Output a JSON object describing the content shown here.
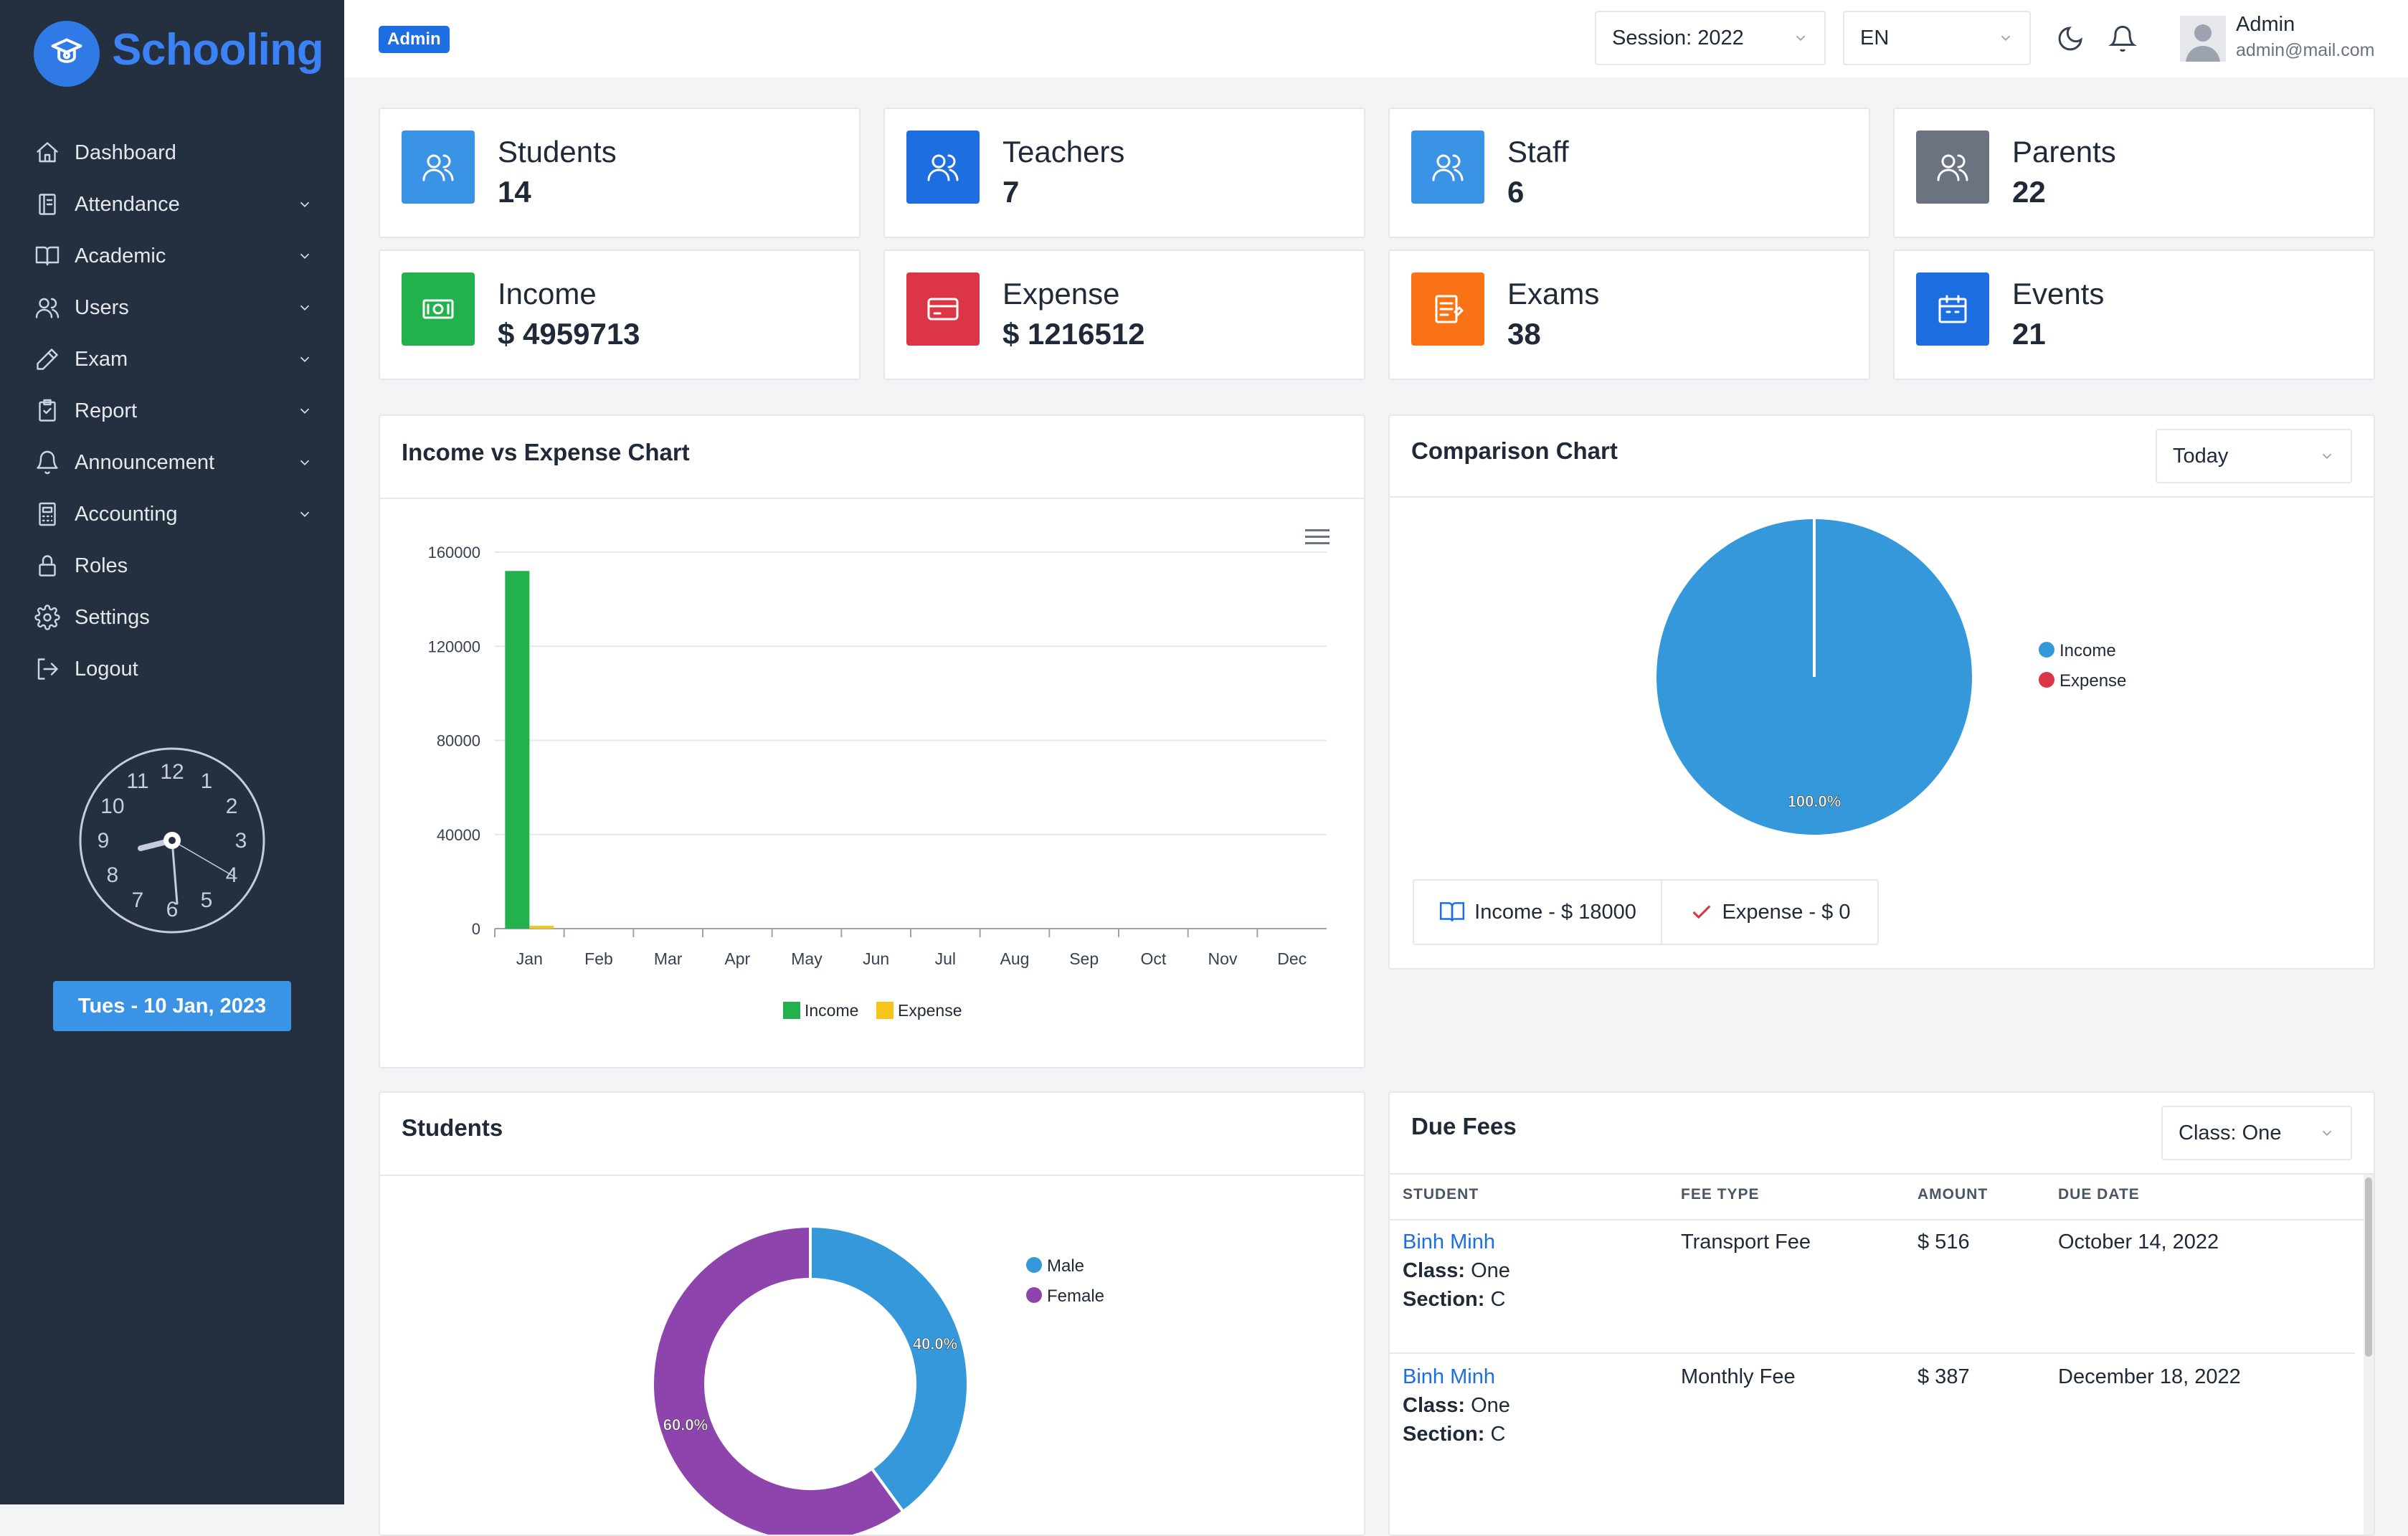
{
  "brand": {
    "name": "Schooling"
  },
  "sidebar": {
    "items": [
      {
        "label": "Dashboard",
        "icon": "home-icon"
      },
      {
        "label": "Attendance",
        "icon": "clipboard-icon"
      },
      {
        "label": "Academic",
        "icon": "book-icon"
      },
      {
        "label": "Users",
        "icon": "users-icon"
      },
      {
        "label": "Exam",
        "icon": "pencil-icon"
      },
      {
        "label": "Report",
        "icon": "report-icon"
      },
      {
        "label": "Announcement",
        "icon": "bell-icon"
      },
      {
        "label": "Accounting",
        "icon": "calculator-icon"
      },
      {
        "label": "Roles",
        "icon": "lock-icon"
      },
      {
        "label": "Settings",
        "icon": "gear-icon"
      },
      {
        "label": "Logout",
        "icon": "logout-icon"
      }
    ],
    "clock": {
      "numbers": [
        "12",
        "1",
        "2",
        "3",
        "4",
        "5",
        "6",
        "7",
        "8",
        "9",
        "10",
        "11"
      ]
    },
    "date_label": "Tues - 10 Jan, 2023"
  },
  "topbar": {
    "role_badge": "Admin",
    "session_select": "Session: 2022",
    "language_select": "EN",
    "user_name": "Admin",
    "user_email": "admin@mail.com"
  },
  "stats": [
    {
      "label": "Students",
      "value": "14",
      "color": "#3b93e6",
      "icon": "users-icon"
    },
    {
      "label": "Teachers",
      "value": "7",
      "color": "#1d6ee0",
      "icon": "users-icon"
    },
    {
      "label": "Staff",
      "value": "6",
      "color": "#3b93e6",
      "icon": "users-icon"
    },
    {
      "label": "Parents",
      "value": "22",
      "color": "#6b7280",
      "icon": "users-icon"
    },
    {
      "label": "Income",
      "value": "$ 4959713",
      "color": "#22b14c",
      "icon": "money-icon"
    },
    {
      "label": "Expense",
      "value": "$ 1216512",
      "color": "#dc3545",
      "icon": "card-icon"
    },
    {
      "label": "Exams",
      "value": "38",
      "color": "#f97316",
      "icon": "notepad-icon"
    },
    {
      "label": "Events",
      "value": "21",
      "color": "#1d6ee0",
      "icon": "calendar-icon"
    }
  ],
  "income_expense_panel": {
    "title": "Income vs Expense Chart"
  },
  "comparison_panel": {
    "title": "Comparison Chart",
    "period_select": "Today",
    "income_button": "Income - $ 18000",
    "expense_button": "Expense - $ 0"
  },
  "students_panel": {
    "title": "Students"
  },
  "due_fees": {
    "title": "Due Fees",
    "class_select": "Class: One",
    "columns": [
      "STUDENT",
      "FEE TYPE",
      "AMOUNT",
      "DUE DATE"
    ],
    "class_label": "Class:",
    "section_label": "Section:",
    "rows": [
      {
        "student": "Binh Minh",
        "class": "One",
        "section": "C",
        "fee_type": "Transport Fee",
        "amount": "$ 516",
        "due_date": "October 14, 2022"
      },
      {
        "student": "Binh Minh",
        "class": "One",
        "section": "C",
        "fee_type": "Monthly Fee",
        "amount": "$ 387",
        "due_date": "December 18, 2022"
      }
    ]
  },
  "chart_data": [
    {
      "type": "bar",
      "categories": [
        "Jan",
        "Feb",
        "Mar",
        "Apr",
        "May",
        "Jun",
        "Jul",
        "Aug",
        "Sep",
        "Oct",
        "Nov",
        "Dec"
      ],
      "series": [
        {
          "name": "Income",
          "color": "#22b14c",
          "values": [
            152000,
            0,
            0,
            0,
            0,
            0,
            0,
            0,
            0,
            0,
            0,
            0
          ]
        },
        {
          "name": "Expense",
          "color": "#f5c518",
          "values": [
            1200,
            0,
            0,
            0,
            0,
            0,
            0,
            0,
            0,
            0,
            0,
            0
          ]
        }
      ],
      "ylim": [
        0,
        160000
      ],
      "yticks": [
        0,
        40000,
        80000,
        120000,
        160000
      ],
      "grid": true,
      "legend": "bottom"
    },
    {
      "type": "pie",
      "slices": [
        {
          "name": "Income",
          "value": 100.0,
          "color": "#3498db",
          "label": "100.0%"
        },
        {
          "name": "Expense",
          "value": 0.0,
          "color": "#dc3545",
          "label": ""
        }
      ],
      "legend": "right"
    },
    {
      "type": "pie",
      "donut": true,
      "slices": [
        {
          "name": "Male",
          "value": 40.0,
          "color": "#3498db",
          "label": "40.0%"
        },
        {
          "name": "Female",
          "value": 60.0,
          "color": "#8e44ad",
          "label": "60.0%"
        }
      ],
      "legend": "right"
    }
  ]
}
